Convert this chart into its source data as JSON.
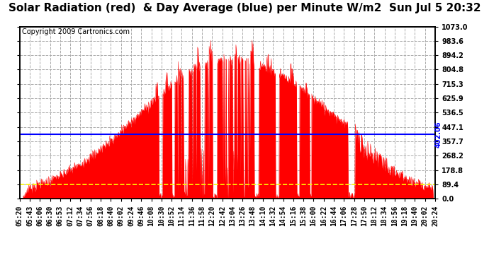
{
  "title": "Solar Radiation (red)  & Day Average (blue) per Minute W/m2  Sun Jul 5 20:32",
  "copyright": "Copyright 2009 Cartronics.com",
  "ymax": 1073.0,
  "ymin": 0.0,
  "yticks": [
    0.0,
    89.4,
    178.8,
    268.2,
    357.7,
    447.1,
    536.5,
    625.9,
    715.3,
    804.8,
    894.2,
    983.6,
    1073.0
  ],
  "day_average": 402.06,
  "fill_color": "#FF0000",
  "avg_line_color": "#0000FF",
  "avg_label_color": "#0000FF",
  "avg_label": "402.06",
  "background_color": "#FFFFFF",
  "plot_bg_color": "#FFFFFF",
  "grid_color": "#AAAAAA",
  "dashed_line_color": "#FFFF00",
  "dashed_line_value": 89.4,
  "title_fontsize": 11,
  "copyright_fontsize": 7,
  "tick_fontsize": 7
}
